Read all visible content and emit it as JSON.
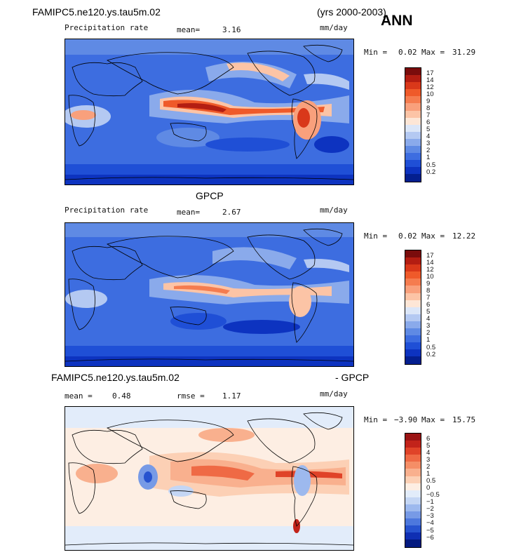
{
  "header": {
    "case_name": "FAMIPC5.ne120.ys.tau5m.02",
    "years": "(yrs 2000-2003)",
    "season": "ANN"
  },
  "panels": [
    {
      "title": "",
      "variable": "Precipitation rate",
      "mean_label": "mean=",
      "mean_value": "3.16",
      "units": "mm/day",
      "min_label": "Min =",
      "min_value": "0.02",
      "max_label": "Max =",
      "max_value": "31.29",
      "colorbar_labels": [
        "17",
        "14",
        "12",
        "10",
        "9",
        "8",
        "7",
        "6",
        "5",
        "4",
        "3",
        "2",
        "1",
        "0.5",
        "0.2"
      ],
      "colorbar_colors": [
        "#7a0c0c",
        "#b31d12",
        "#d9381a",
        "#ef5a2a",
        "#f57c4f",
        "#f9a07c",
        "#fcc4a6",
        "#fde6d6",
        "#dbe6f8",
        "#b4c9f2",
        "#8aaaeb",
        "#5f8ae4",
        "#3d6de0",
        "#1f4fd6",
        "#0d33c0",
        "#041f8f"
      ]
    },
    {
      "title": "GPCP",
      "variable": "Precipitation rate",
      "mean_label": "mean=",
      "mean_value": "2.67",
      "units": "mm/day",
      "min_label": "Min =",
      "min_value": "0.02",
      "max_label": "Max =",
      "max_value": "12.22",
      "colorbar_labels": [
        "17",
        "14",
        "12",
        "10",
        "9",
        "8",
        "7",
        "6",
        "5",
        "4",
        "3",
        "2",
        "1",
        "0.5",
        "0.2"
      ],
      "colorbar_colors": [
        "#7a0c0c",
        "#b31d12",
        "#d9381a",
        "#ef5a2a",
        "#f57c4f",
        "#f9a07c",
        "#fcc4a6",
        "#fde6d6",
        "#dbe6f8",
        "#b4c9f2",
        "#8aaaeb",
        "#5f8ae4",
        "#3d6de0",
        "#1f4fd6",
        "#0d33c0",
        "#041f8f"
      ]
    },
    {
      "title_left": "FAMIPC5.ne120.ys.tau5m.02",
      "title_right": "- GPCP",
      "mean_label": "mean =",
      "mean_value": "0.48",
      "rmse_label": "rmse =",
      "rmse_value": "1.17",
      "units": "mm/day",
      "min_label": "Min =",
      "min_value": "−3.90",
      "max_label": "Max =",
      "max_value": "15.75",
      "colorbar_labels": [
        "6",
        "5",
        "4",
        "3",
        "2",
        "1",
        "0.5",
        "0",
        "−0.5",
        "−1",
        "−2",
        "−3",
        "−4",
        "−5",
        "−6"
      ],
      "colorbar_colors": [
        "#9b1414",
        "#c2231a",
        "#e04328",
        "#ef6a45",
        "#f58e66",
        "#f9b08e",
        "#fcd0b5",
        "#fdeee3",
        "#e2ecfa",
        "#c4d6f4",
        "#9db9ee",
        "#779ae6",
        "#4d78dd",
        "#2753cf",
        "#0f2fb3",
        "#041a80"
      ]
    }
  ]
}
